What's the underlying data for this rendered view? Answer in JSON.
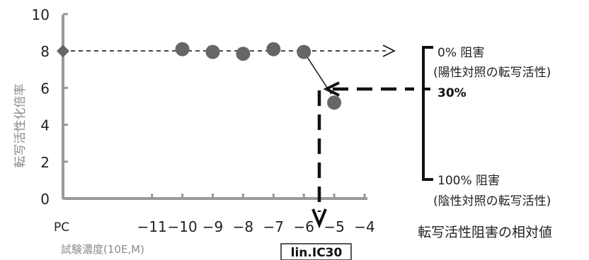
{
  "chart_data": {
    "type": "scatter",
    "ylabel": "転写活性化倍率",
    "xlabel": "試験濃度(10E,M)",
    "ylim": [
      0,
      10
    ],
    "yticks": [
      0,
      2,
      4,
      6,
      8,
      10
    ],
    "xlim": [
      -12.5,
      -4
    ],
    "xticks": [
      -11,
      -10,
      -9,
      -8,
      -7,
      -6,
      -5,
      -4
    ],
    "xtick_labels": [
      "−11",
      "−10",
      "−9",
      "−8",
      "−7",
      "−6",
      "−5",
      "−4"
    ],
    "pc_label": "PC",
    "pc_point": {
      "x": "PC",
      "y": 8
    },
    "points": [
      {
        "x": -10,
        "y": 8.1
      },
      {
        "x": -9,
        "y": 7.95
      },
      {
        "x": -8,
        "y": 7.85
      },
      {
        "x": -7,
        "y": 8.1
      },
      {
        "x": -6,
        "y": 7.95
      },
      {
        "x": -5,
        "y": 5.2
      }
    ],
    "ic30_y": 6.1,
    "ic30_x": -5.4,
    "annotations": {
      "zero_inhibition": "0% 阻害",
      "zero_note": "(陽性対照の転写活性)",
      "thirty": "30%",
      "hundred_inhibition": "100% 阻害",
      "hundred_note": "(陰性対照の転写活性)",
      "relative_value": "転写活性阻害の相対値",
      "ic_label": "lin.IC30"
    },
    "colors": {
      "marker": "#666666",
      "pc_marker": "#666666",
      "axis": "#999999",
      "dashes": "#111111"
    }
  }
}
